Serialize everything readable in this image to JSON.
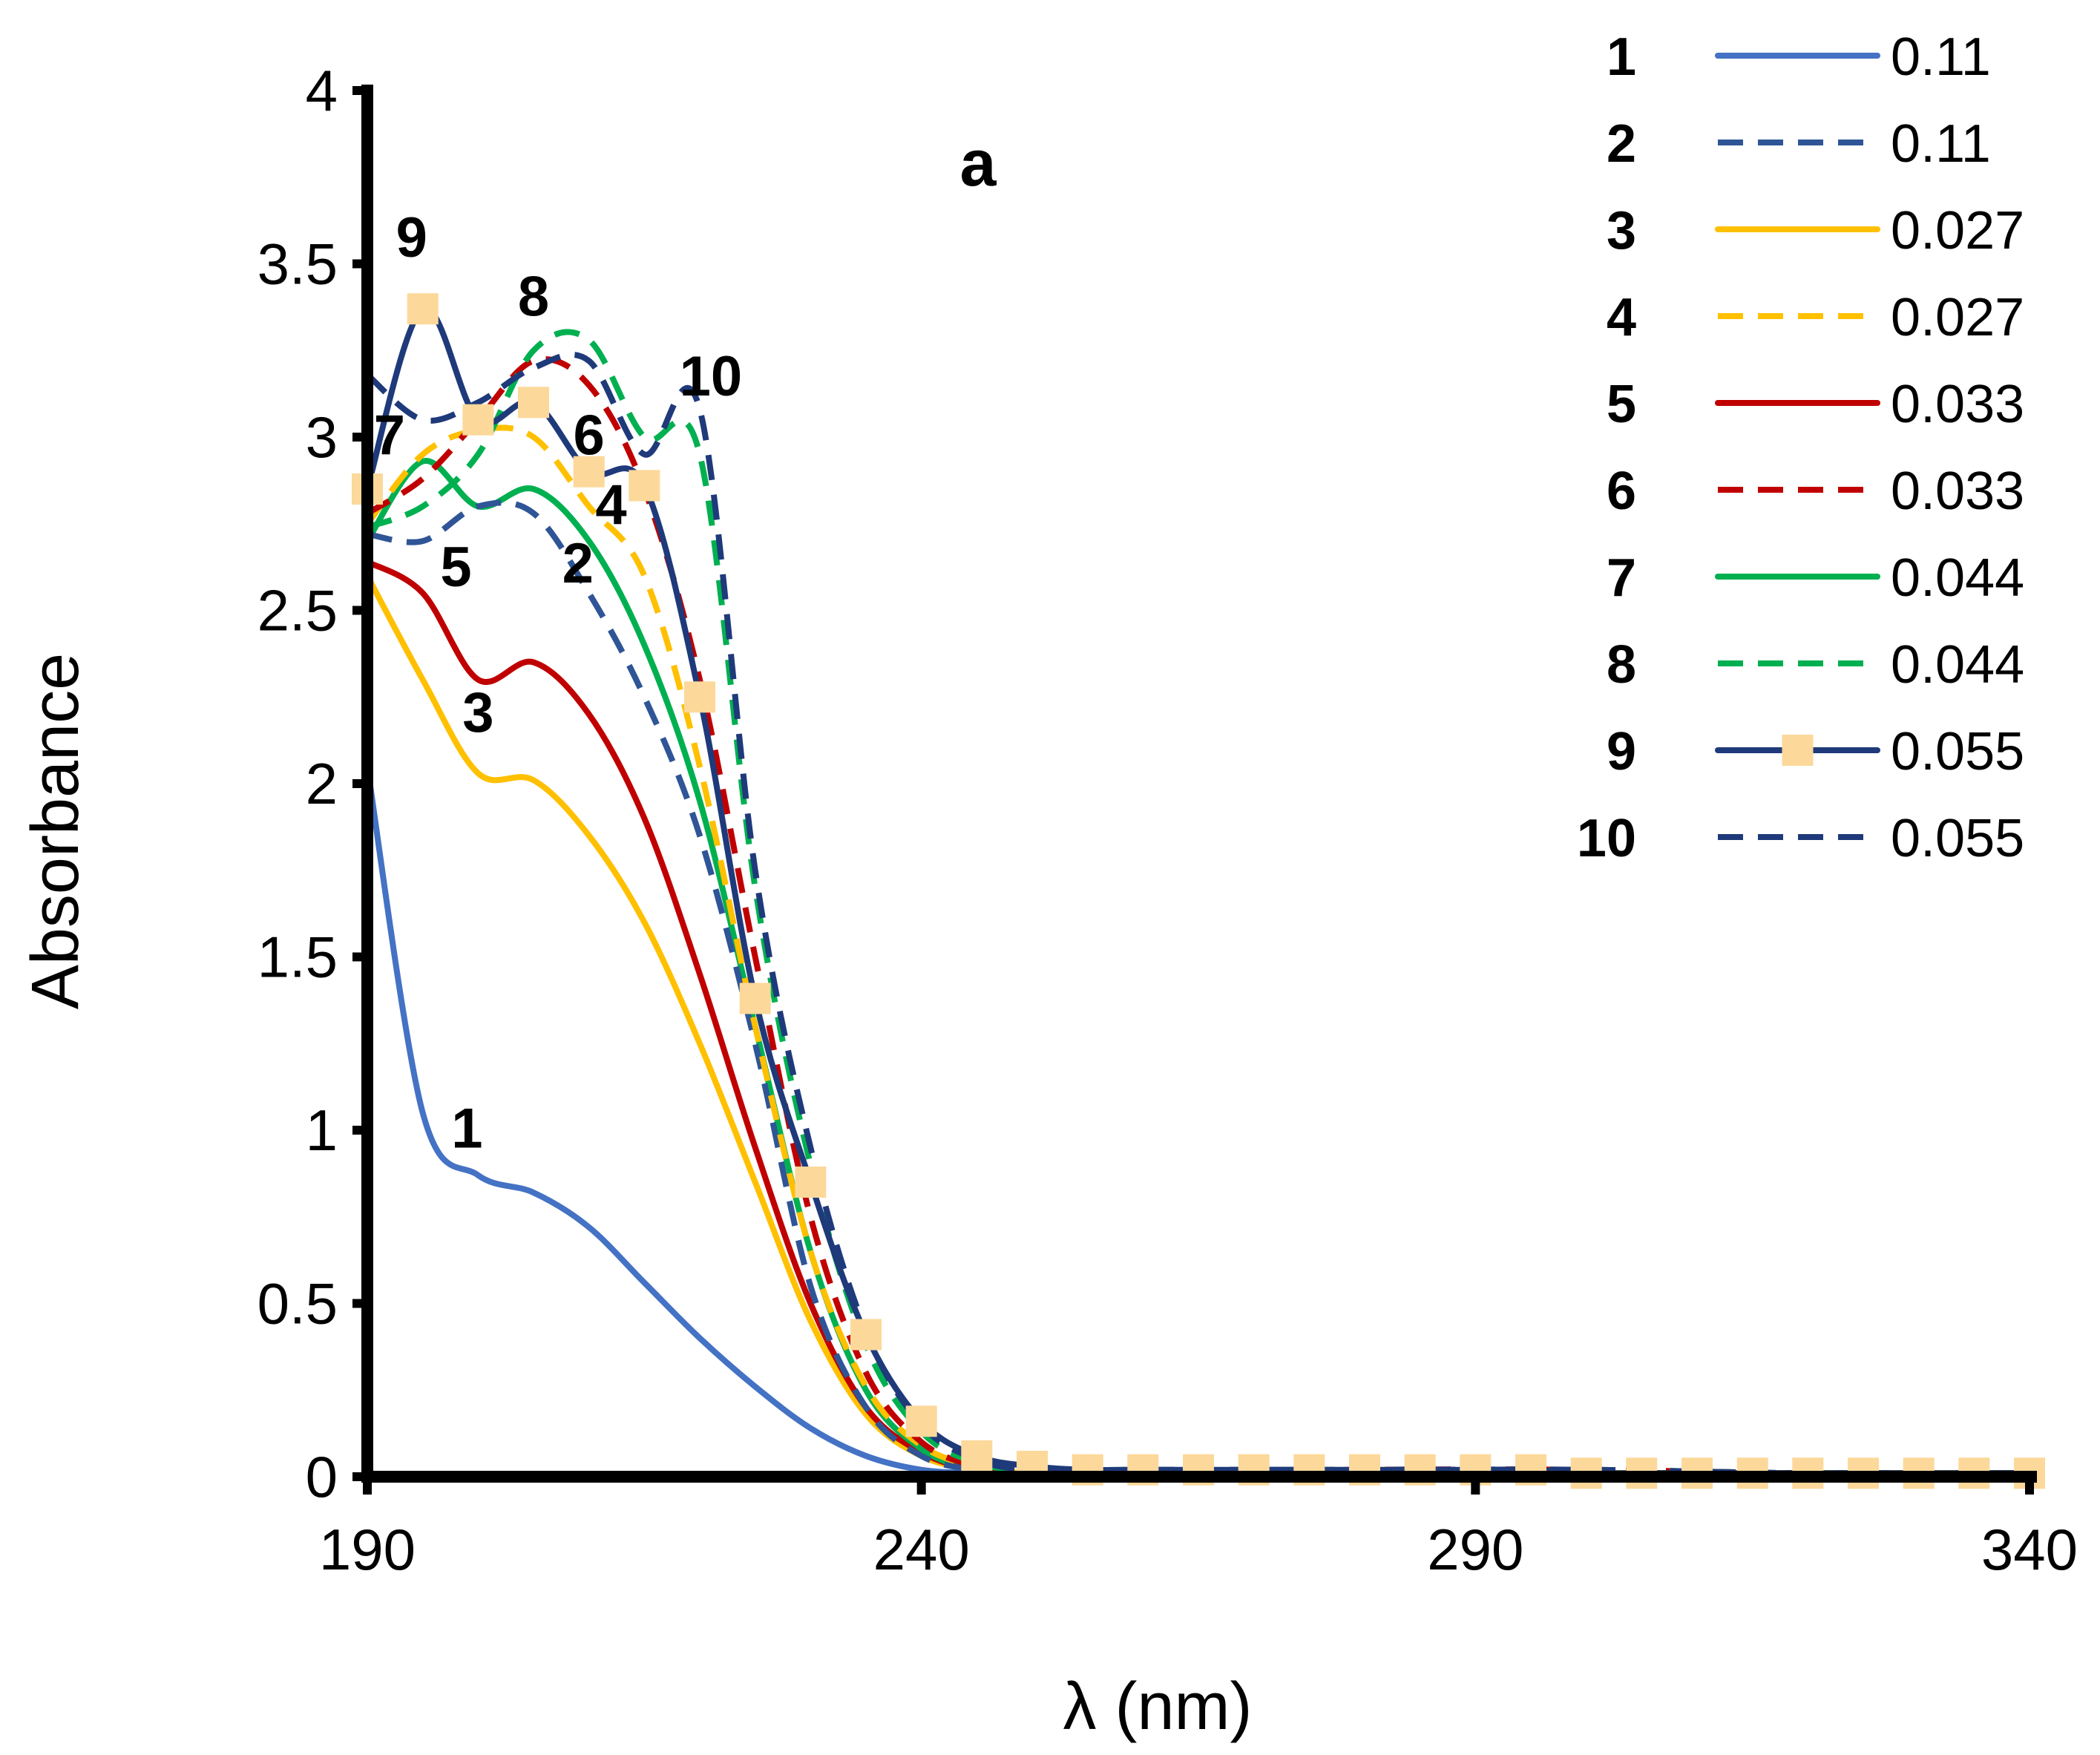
{
  "chart_data": {
    "type": "line",
    "panel_label": "a",
    "xlabel": "λ (nm)",
    "ylabel": "Absorbance",
    "xlim": [
      190,
      340
    ],
    "ylim": [
      0,
      4
    ],
    "xticks": [
      "190",
      "240",
      "290",
      "340"
    ],
    "yticks": [
      "0",
      "0.5",
      "1",
      "1.5",
      "2",
      "2.5",
      "3",
      "3.5",
      "4"
    ],
    "grid": false,
    "legend_position": "top-right",
    "series": [
      {
        "id": "1",
        "name": "0.11",
        "color": "#4472C4",
        "dash": false,
        "marker": false,
        "x": [
          190,
          195,
          200,
          205,
          210,
          215,
          220,
          225,
          230,
          235,
          240,
          245,
          250,
          260,
          280,
          300,
          320,
          340
        ],
        "y": [
          2.05,
          1.05,
          0.87,
          0.82,
          0.72,
          0.56,
          0.4,
          0.26,
          0.14,
          0.06,
          0.02,
          0.01,
          0.005,
          0.005,
          0.01,
          0.01,
          0.005,
          0.005
        ]
      },
      {
        "id": "2",
        "name": "0.11",
        "color": "#2F5597",
        "dash": true,
        "marker": false,
        "x": [
          190,
          195,
          200,
          205,
          210,
          215,
          220,
          225,
          230,
          235,
          240,
          245,
          250,
          260,
          280,
          300,
          320,
          340
        ],
        "y": [
          2.72,
          2.7,
          2.8,
          2.78,
          2.55,
          2.25,
          1.85,
          1.25,
          0.55,
          0.2,
          0.06,
          0.02,
          0.01,
          0.01,
          0.02,
          0.01,
          0.01,
          0.01
        ]
      },
      {
        "id": "3",
        "name": "0.027",
        "color": "#FFC000",
        "dash": false,
        "marker": false,
        "x": [
          190,
          195,
          200,
          205,
          210,
          215,
          220,
          225,
          230,
          235,
          240,
          245,
          250,
          260,
          280,
          300,
          320,
          340
        ],
        "y": [
          2.6,
          2.3,
          2.03,
          2.01,
          1.85,
          1.6,
          1.25,
          0.85,
          0.45,
          0.18,
          0.06,
          0.02,
          0.01,
          0.01,
          0.01,
          0.01,
          0.01,
          0.01
        ]
      },
      {
        "id": "4",
        "name": "0.027",
        "color": "#FFC000",
        "dash": true,
        "marker": false,
        "x": [
          190,
          195,
          200,
          205,
          210,
          215,
          220,
          225,
          230,
          235,
          240,
          245,
          250,
          260,
          280,
          300,
          320,
          340
        ],
        "y": [
          2.75,
          2.95,
          3.02,
          3.0,
          2.8,
          2.6,
          2.05,
          1.3,
          0.65,
          0.26,
          0.09,
          0.03,
          0.01,
          0.01,
          0.02,
          0.01,
          0.01,
          0.01
        ]
      },
      {
        "id": "5",
        "name": "0.033",
        "color": "#C00000",
        "dash": false,
        "marker": false,
        "x": [
          190,
          195,
          200,
          205,
          210,
          215,
          220,
          225,
          230,
          235,
          240,
          245,
          250,
          260,
          280,
          300,
          320,
          340
        ],
        "y": [
          2.64,
          2.55,
          2.3,
          2.35,
          2.2,
          1.9,
          1.45,
          0.95,
          0.5,
          0.2,
          0.07,
          0.02,
          0.01,
          0.01,
          0.01,
          0.01,
          0.01,
          0.01
        ]
      },
      {
        "id": "6",
        "name": "0.033",
        "color": "#C00000",
        "dash": true,
        "marker": false,
        "x": [
          190,
          195,
          200,
          205,
          210,
          215,
          220,
          225,
          230,
          235,
          240,
          245,
          250,
          260,
          280,
          300,
          320,
          340
        ],
        "y": [
          2.78,
          2.88,
          3.05,
          3.22,
          3.15,
          2.85,
          2.3,
          1.5,
          0.75,
          0.3,
          0.1,
          0.03,
          0.01,
          0.01,
          0.02,
          0.02,
          0.01,
          0.01
        ]
      },
      {
        "id": "7",
        "name": "0.044",
        "color": "#00B050",
        "dash": false,
        "marker": false,
        "x": [
          190,
          195,
          200,
          205,
          210,
          215,
          220,
          225,
          230,
          235,
          240,
          245,
          250,
          260,
          280,
          300,
          320,
          340
        ],
        "y": [
          2.7,
          2.93,
          2.8,
          2.85,
          2.7,
          2.4,
          1.95,
          1.3,
          0.65,
          0.25,
          0.08,
          0.02,
          0.01,
          0.01,
          0.01,
          0.01,
          0.01,
          0.01
        ]
      },
      {
        "id": "8",
        "name": "0.044",
        "color": "#00B050",
        "dash": true,
        "marker": false,
        "x": [
          190,
          195,
          200,
          205,
          210,
          215,
          220,
          225,
          230,
          235,
          240,
          245,
          250,
          260,
          280,
          300,
          320,
          340
        ],
        "y": [
          2.74,
          2.8,
          2.95,
          3.25,
          3.28,
          3.0,
          2.95,
          1.7,
          0.9,
          0.38,
          0.13,
          0.04,
          0.02,
          0.02,
          0.02,
          0.02,
          0.01,
          0.01
        ]
      },
      {
        "id": "9",
        "name": "0.055",
        "color": "#1F3A7A",
        "dash": false,
        "marker": true,
        "marker_color": "#FCD89A",
        "x": [
          190,
          195,
          200,
          205,
          210,
          215,
          220,
          225,
          230,
          235,
          240,
          245,
          250,
          255,
          260,
          265,
          270,
          275,
          280,
          285,
          290,
          295,
          300,
          305,
          310,
          315,
          320,
          325,
          330,
          335,
          340
        ],
        "y": [
          2.85,
          3.37,
          3.05,
          3.1,
          2.9,
          2.86,
          2.25,
          1.38,
          0.85,
          0.41,
          0.16,
          0.06,
          0.03,
          0.02,
          0.02,
          0.02,
          0.02,
          0.02,
          0.02,
          0.02,
          0.02,
          0.02,
          0.01,
          0.01,
          0.01,
          0.01,
          0.01,
          0.01,
          0.01,
          0.01,
          0.01
        ]
      },
      {
        "id": "10",
        "name": "0.055",
        "color": "#1F3A7A",
        "dash": true,
        "marker": false,
        "x": [
          190,
          195,
          200,
          205,
          210,
          215,
          220,
          225,
          230,
          235,
          240,
          245,
          250,
          260,
          280,
          300,
          320,
          340
        ],
        "y": [
          3.18,
          3.05,
          3.1,
          3.2,
          3.22,
          2.95,
          3.08,
          1.75,
          0.95,
          0.42,
          0.15,
          0.05,
          0.02,
          0.02,
          0.02,
          0.02,
          0.01,
          0.01
        ]
      }
    ],
    "annotations": [
      {
        "text": "1",
        "x": 199,
        "y": 0.95
      },
      {
        "text": "2",
        "x": 209,
        "y": 2.58
      },
      {
        "text": "3",
        "x": 200,
        "y": 2.15
      },
      {
        "text": "4",
        "x": 212,
        "y": 2.75
      },
      {
        "text": "5",
        "x": 198,
        "y": 2.57
      },
      {
        "text": "6",
        "x": 210,
        "y": 2.95
      },
      {
        "text": "7",
        "x": 192,
        "y": 2.95
      },
      {
        "text": "8",
        "x": 205,
        "y": 3.35
      },
      {
        "text": "9",
        "x": 194,
        "y": 3.52
      },
      {
        "text": "10",
        "x": 221,
        "y": 3.12
      }
    ]
  }
}
